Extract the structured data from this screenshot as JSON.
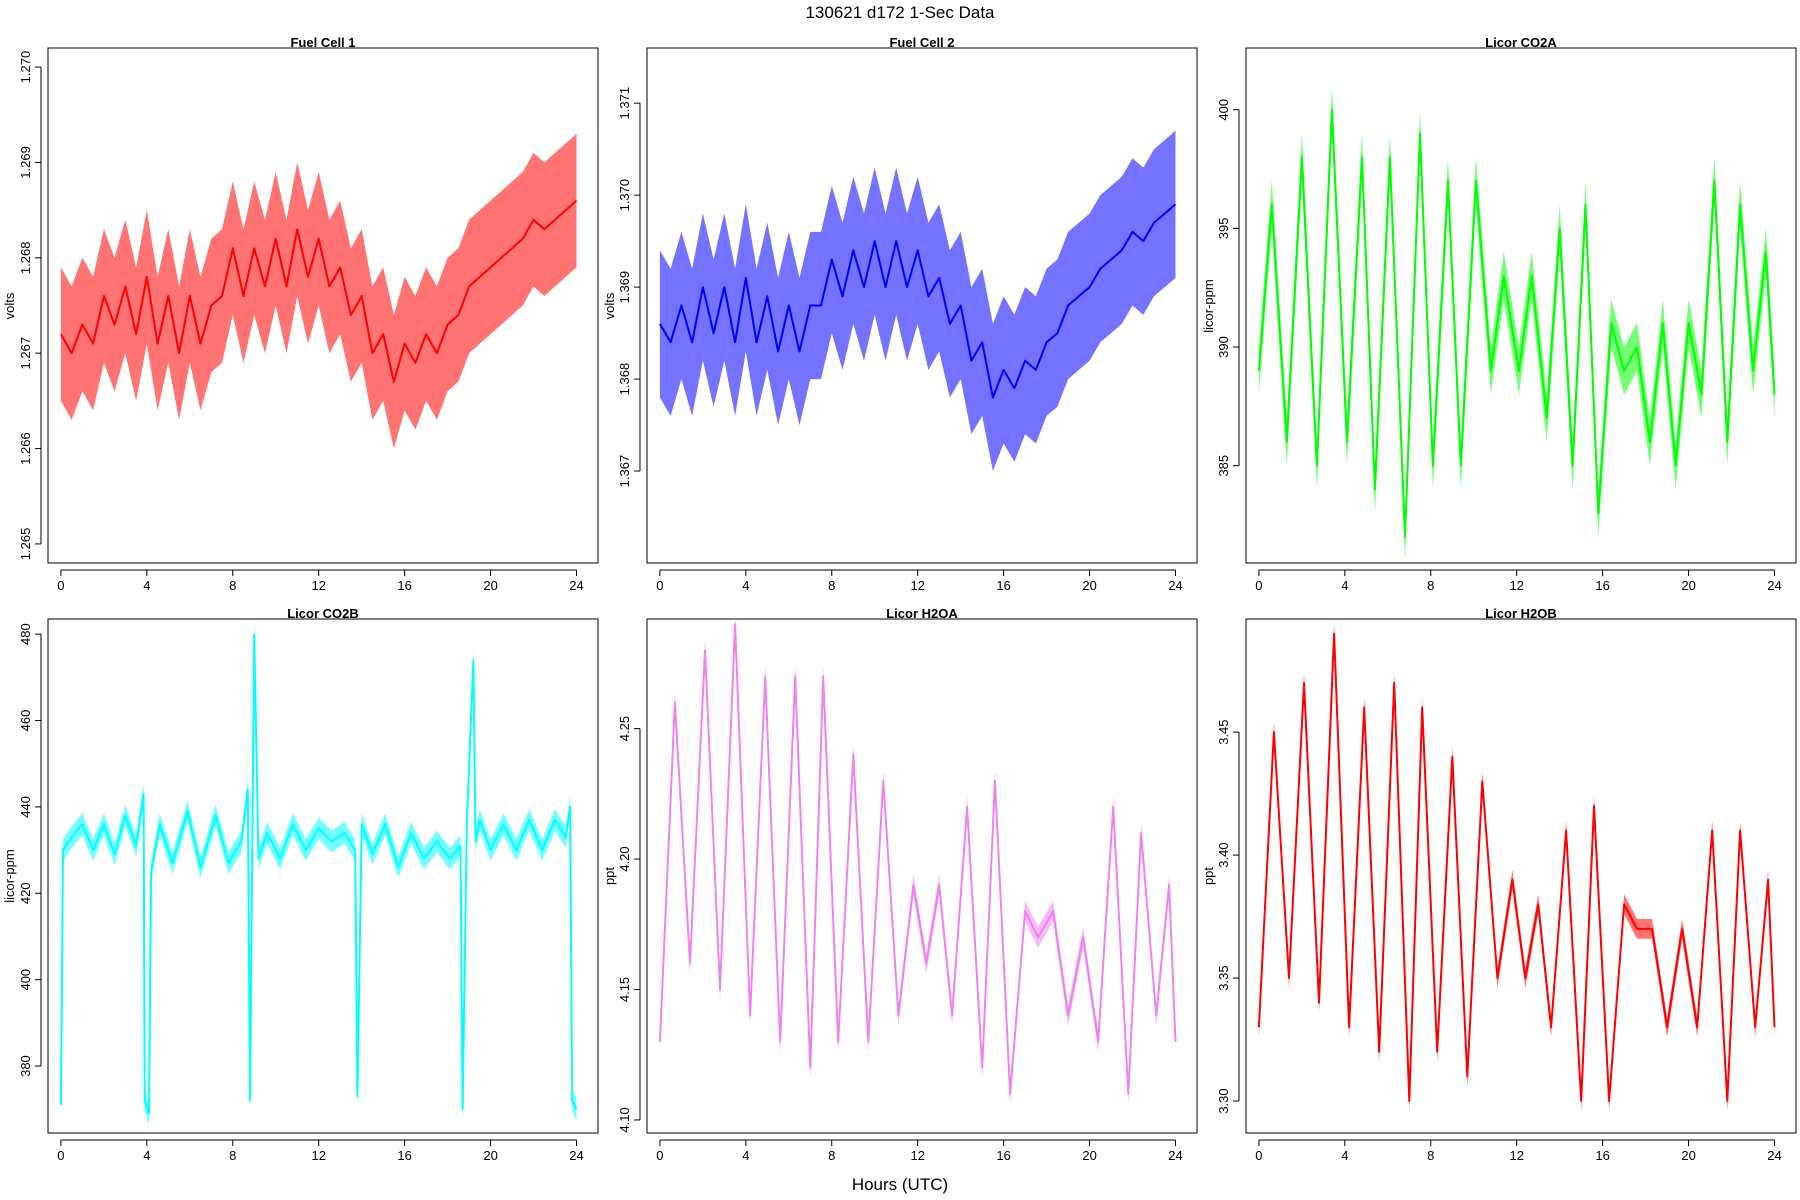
{
  "figure": {
    "suptitle": "130621   d172   1-Sec Data",
    "xlabel": "Hours (UTC)"
  },
  "chart_data": [
    {
      "type": "line",
      "title": "Fuel Cell 1",
      "ylabel": "volts",
      "color": "#ff0000",
      "xlim": [
        -0.6,
        25
      ],
      "ylim": [
        1.2648,
        1.2702
      ],
      "xticks": [
        0,
        4,
        8,
        12,
        16,
        20,
        24
      ],
      "yticks": [
        1.265,
        1.266,
        1.267,
        1.268,
        1.269,
        1.27
      ],
      "yticklabels": [
        "1.265",
        "1.266",
        "1.267",
        "1.268",
        "1.269",
        "1.270"
      ],
      "x": [
        0,
        0.5,
        1,
        1.5,
        2,
        2.5,
        3,
        3.5,
        4,
        4.5,
        5,
        5.5,
        6,
        6.5,
        7,
        7.5,
        8,
        8.5,
        9,
        9.5,
        10,
        10.5,
        11,
        11.5,
        12,
        12.5,
        13,
        13.5,
        14,
        14.5,
        15,
        15.5,
        16,
        16.5,
        17,
        17.5,
        18,
        18.5,
        19,
        19.5,
        20,
        20.5,
        21,
        21.5,
        22,
        22.5,
        23,
        23.5,
        24
      ],
      "y": [
        1.2672,
        1.267,
        1.2673,
        1.2671,
        1.2676,
        1.2673,
        1.2677,
        1.2672,
        1.2678,
        1.2671,
        1.2676,
        1.267,
        1.2676,
        1.2671,
        1.2675,
        1.2676,
        1.2681,
        1.2676,
        1.2681,
        1.2677,
        1.2682,
        1.2677,
        1.2683,
        1.2678,
        1.2682,
        1.2677,
        1.2679,
        1.2674,
        1.2676,
        1.267,
        1.2672,
        1.2667,
        1.2671,
        1.2669,
        1.2672,
        1.267,
        1.2673,
        1.2674,
        1.2677,
        1.2678,
        1.2679,
        1.268,
        1.2681,
        1.2682,
        1.2684,
        1.2683,
        1.2684,
        1.2685,
        1.2686
      ],
      "band": 0.0007
    },
    {
      "type": "line",
      "title": "Fuel Cell 2",
      "ylabel": "volts",
      "color": "#0000ff",
      "xlim": [
        -0.6,
        25
      ],
      "ylim": [
        1.366,
        1.3716
      ],
      "xticks": [
        0,
        4,
        8,
        12,
        16,
        20,
        24
      ],
      "yticks": [
        1.367,
        1.368,
        1.369,
        1.37,
        1.371
      ],
      "yticklabels": [
        "1.367",
        "1.368",
        "1.369",
        "1.370",
        "1.371"
      ],
      "x": [
        0,
        0.5,
        1,
        1.5,
        2,
        2.5,
        3,
        3.5,
        4,
        4.5,
        5,
        5.5,
        6,
        6.5,
        7,
        7.5,
        8,
        8.5,
        9,
        9.5,
        10,
        10.5,
        11,
        11.5,
        12,
        12.5,
        13,
        13.5,
        14,
        14.5,
        15,
        15.5,
        16,
        16.5,
        17,
        17.5,
        18,
        18.5,
        19,
        19.5,
        20,
        20.5,
        21,
        21.5,
        22,
        22.5,
        23,
        23.5,
        24
      ],
      "y": [
        1.3686,
        1.3684,
        1.3688,
        1.3684,
        1.369,
        1.3685,
        1.369,
        1.3684,
        1.3691,
        1.3684,
        1.3689,
        1.3683,
        1.3688,
        1.3683,
        1.3688,
        1.3688,
        1.3693,
        1.3689,
        1.3694,
        1.369,
        1.3695,
        1.369,
        1.3695,
        1.369,
        1.3694,
        1.3689,
        1.3691,
        1.3686,
        1.3688,
        1.3682,
        1.3684,
        1.3678,
        1.3681,
        1.3679,
        1.3682,
        1.3681,
        1.3684,
        1.3685,
        1.3688,
        1.3689,
        1.369,
        1.3692,
        1.3693,
        1.3694,
        1.3696,
        1.3695,
        1.3697,
        1.3698,
        1.3699
      ],
      "band": 0.0008
    },
    {
      "type": "line",
      "title": "Licor CO2A",
      "ylabel": "licor-ppm",
      "color": "#00ff00",
      "xlim": [
        -0.6,
        25
      ],
      "ylim": [
        380.9,
        402.6
      ],
      "xticks": [
        0,
        4,
        8,
        12,
        16,
        20,
        24
      ],
      "yticks": [
        385,
        390,
        395,
        400
      ],
      "yticklabels": [
        "385",
        "390",
        "395",
        "400"
      ],
      "x": [
        0,
        0.6,
        1.3,
        2,
        2.7,
        3.4,
        4.1,
        4.8,
        5.4,
        6.1,
        6.8,
        7.5,
        8.1,
        8.8,
        9.4,
        10.1,
        10.8,
        11.4,
        12.1,
        12.7,
        13.4,
        14.0,
        14.6,
        15.2,
        15.8,
        16.4,
        17.0,
        17.6,
        18.2,
        18.8,
        19.4,
        20.0,
        20.6,
        21.2,
        21.8,
        22.4,
        23.0,
        23.6,
        24.0
      ],
      "y": [
        389,
        396,
        386,
        398,
        385,
        400,
        386,
        398,
        384,
        398,
        382,
        399,
        385,
        397,
        385,
        397,
        389,
        393,
        389,
        393,
        387,
        395,
        385,
        396,
        383,
        391,
        389,
        390,
        386,
        391,
        385,
        391,
        388,
        397,
        386,
        396,
        389,
        394,
        388
      ],
      "band": 1.0
    },
    {
      "type": "line",
      "title": "Licor CO2B",
      "ylabel": "licor-ppm",
      "color": "#00ffff",
      "xlim": [
        -0.6,
        25
      ],
      "ylim": [
        364.5,
        483.5
      ],
      "xticks": [
        0,
        4,
        8,
        12,
        16,
        20,
        24
      ],
      "yticks": [
        380,
        400,
        420,
        440,
        460,
        480
      ],
      "yticklabels": [
        "380",
        "400",
        "420",
        "440",
        "460",
        "480"
      ],
      "x": [
        0,
        0.1,
        0.5,
        1,
        1.5,
        2,
        2.5,
        3,
        3.5,
        3.85,
        3.9,
        4.1,
        4.2,
        4.6,
        5.2,
        5.9,
        6.5,
        7.2,
        7.8,
        8.4,
        8.7,
        8.8,
        9.0,
        9.2,
        9.6,
        10.2,
        10.8,
        11.4,
        12.0,
        12.6,
        13.2,
        13.7,
        13.8,
        14.0,
        14.5,
        15.1,
        15.7,
        16.3,
        16.9,
        17.5,
        18.1,
        18.6,
        18.7,
        18.9,
        19.2,
        19.3,
        19.5,
        20.0,
        20.6,
        21.2,
        21.8,
        22.4,
        23.0,
        23.5,
        23.7,
        23.8,
        24.0
      ],
      "y": [
        371,
        430,
        433,
        436,
        430,
        436,
        429,
        438,
        431,
        443,
        372,
        369,
        425,
        436,
        427,
        439,
        426,
        438,
        427,
        432,
        444,
        372,
        480,
        428,
        434,
        428,
        436,
        430,
        435,
        432,
        434,
        430,
        373,
        436,
        429,
        436,
        426,
        434,
        428,
        432,
        428,
        431,
        370,
        437,
        474,
        432,
        437,
        430,
        436,
        430,
        437,
        430,
        437,
        433,
        440,
        372,
        370
      ],
      "band": 2.5
    },
    {
      "type": "line",
      "title": "Licor H2OA",
      "ylabel": "ppt",
      "color": "#ee82ee",
      "xlim": [
        -0.6,
        25
      ],
      "ylim": [
        4.095,
        4.292
      ],
      "xticks": [
        0,
        4,
        8,
        12,
        16,
        20,
        24
      ],
      "yticks": [
        4.1,
        4.15,
        4.2,
        4.25
      ],
      "yticklabels": [
        "4.10",
        "4.15",
        "4.20",
        "4.25"
      ],
      "x": [
        0,
        0.7,
        1.4,
        2.1,
        2.8,
        3.5,
        4.2,
        4.9,
        5.6,
        6.3,
        7.0,
        7.6,
        8.3,
        9.0,
        9.7,
        10.4,
        11.1,
        11.8,
        12.4,
        13.0,
        13.6,
        14.3,
        15.0,
        15.6,
        16.3,
        17.0,
        17.6,
        18.3,
        19.0,
        19.7,
        20.4,
        21.1,
        21.8,
        22.4,
        23.1,
        23.7,
        24.0
      ],
      "y": [
        4.13,
        4.26,
        4.16,
        4.28,
        4.15,
        4.29,
        4.14,
        4.27,
        4.13,
        4.27,
        4.12,
        4.27,
        4.13,
        4.24,
        4.13,
        4.23,
        4.14,
        4.19,
        4.16,
        4.19,
        4.14,
        4.22,
        4.12,
        4.23,
        4.11,
        4.18,
        4.17,
        4.18,
        4.14,
        4.17,
        4.13,
        4.22,
        4.11,
        4.21,
        4.14,
        4.19,
        4.13
      ],
      "band": 0.004
    },
    {
      "type": "line",
      "title": "Licor H2OB",
      "ylabel": "ppt",
      "color": "#ff0000",
      "xlim": [
        -0.6,
        25
      ],
      "ylim": [
        3.287,
        3.496
      ],
      "xticks": [
        0,
        4,
        8,
        12,
        16,
        20,
        24
      ],
      "yticks": [
        3.3,
        3.35,
        3.4,
        3.45
      ],
      "yticklabels": [
        "3.30",
        "3.35",
        "3.40",
        "3.45"
      ],
      "x": [
        0,
        0.7,
        1.4,
        2.1,
        2.8,
        3.5,
        4.2,
        4.9,
        5.6,
        6.3,
        7.0,
        7.6,
        8.3,
        9.0,
        9.7,
        10.4,
        11.1,
        11.8,
        12.4,
        13.0,
        13.6,
        14.3,
        15.0,
        15.6,
        16.3,
        17.0,
        17.6,
        18.3,
        19.0,
        19.7,
        20.4,
        21.1,
        21.8,
        22.4,
        23.1,
        23.7,
        24.0
      ],
      "y": [
        3.33,
        3.45,
        3.35,
        3.47,
        3.34,
        3.49,
        3.33,
        3.46,
        3.32,
        3.47,
        3.3,
        3.46,
        3.32,
        3.44,
        3.31,
        3.43,
        3.35,
        3.39,
        3.35,
        3.38,
        3.33,
        3.41,
        3.3,
        3.42,
        3.3,
        3.38,
        3.37,
        3.37,
        3.33,
        3.37,
        3.33,
        3.41,
        3.3,
        3.41,
        3.33,
        3.39,
        3.33
      ],
      "band": 0.004
    }
  ]
}
